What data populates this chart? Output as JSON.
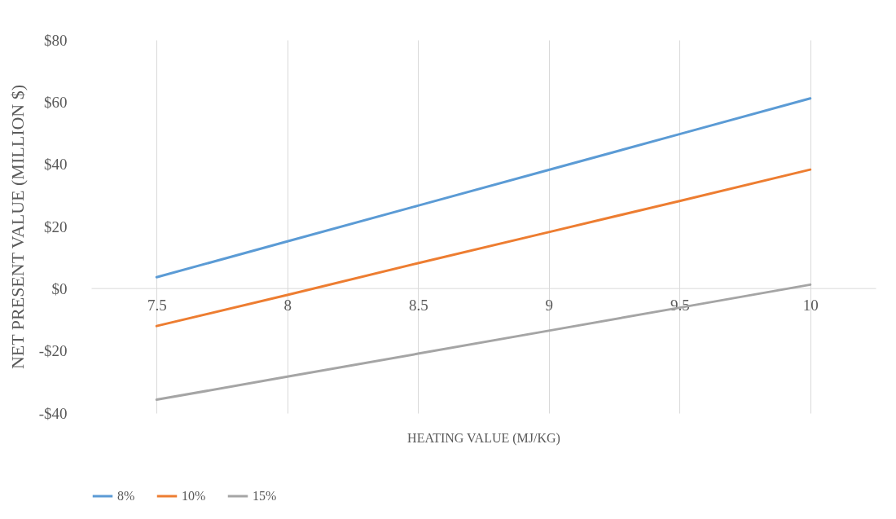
{
  "chart_data": {
    "type": "line",
    "xlabel": "HEATING VALUE (MJ/KG)",
    "ylabel": "NET PRESENT VALUE (MILLION $)",
    "categories": [
      "7.5",
      "8",
      "8.5",
      "9",
      "9.5",
      "10"
    ],
    "series": [
      {
        "name": "8%",
        "color": "#5b9bd5",
        "values": [
          3.7,
          15.2,
          26.7,
          38.2,
          49.7,
          61.2
        ]
      },
      {
        "name": "10%",
        "color": "#ed7d31",
        "values": [
          -12,
          -2,
          8.2,
          18.2,
          28.2,
          38.3
        ]
      },
      {
        "name": "15%",
        "color": "#a5a5a5",
        "values": [
          -35.7,
          -28.3,
          -20.9,
          -13.5,
          -6.1,
          1.3
        ]
      }
    ],
    "ylim": [
      -40,
      80
    ],
    "yticks": [
      {
        "value": -40,
        "label": "-$40"
      },
      {
        "value": -20,
        "label": "-$20"
      },
      {
        "value": 0,
        "label": "$0"
      },
      {
        "value": 20,
        "label": "$20"
      },
      {
        "value": 40,
        "label": "$40"
      },
      {
        "value": 60,
        "label": "$60"
      },
      {
        "value": 80,
        "label": "$80"
      }
    ],
    "grid": "x",
    "legend": "bottom",
    "marker": "none",
    "line_style": "solid"
  }
}
